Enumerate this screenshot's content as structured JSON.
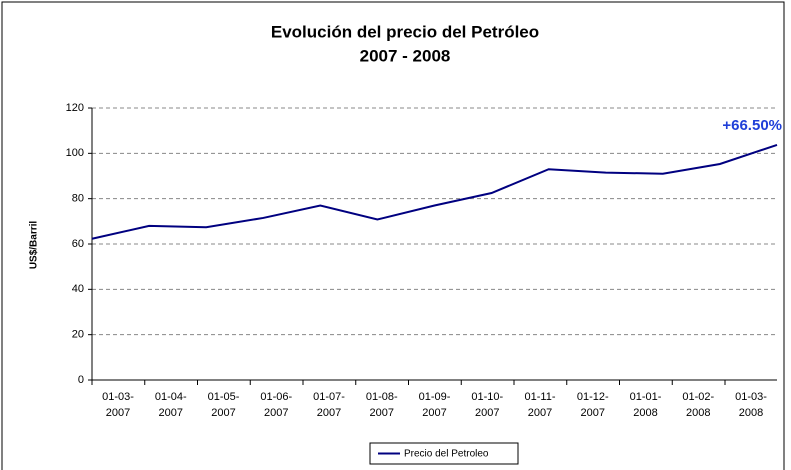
{
  "chart_data": {
    "type": "line",
    "title": "Evolución del precio del Petróleo",
    "subtitle": "2007 - 2008",
    "y_label": "US$/Barril",
    "annotation": "+66.50%",
    "categories": [
      "01-03-2007",
      "01-04-2007",
      "01-05-2007",
      "01-06-2007",
      "01-07-2007",
      "01-08-2007",
      "01-09-2007",
      "01-10-2007",
      "01-11-2007",
      "01-12-2007",
      "01-01-2008",
      "01-02-2008",
      "01-03-2008"
    ],
    "series": [
      {
        "name": "Precio del Petroleo",
        "color": "#000080",
        "values": [
          62.3,
          68,
          67.4,
          71.5,
          77,
          70.8,
          77,
          82.5,
          93,
          91.5,
          91,
          95.3,
          103.7
        ]
      }
    ],
    "ylim": [
      0,
      120
    ],
    "yticks": [
      0,
      20,
      40,
      60,
      80,
      100,
      120
    ],
    "grid": true,
    "legend": "bottom"
  }
}
